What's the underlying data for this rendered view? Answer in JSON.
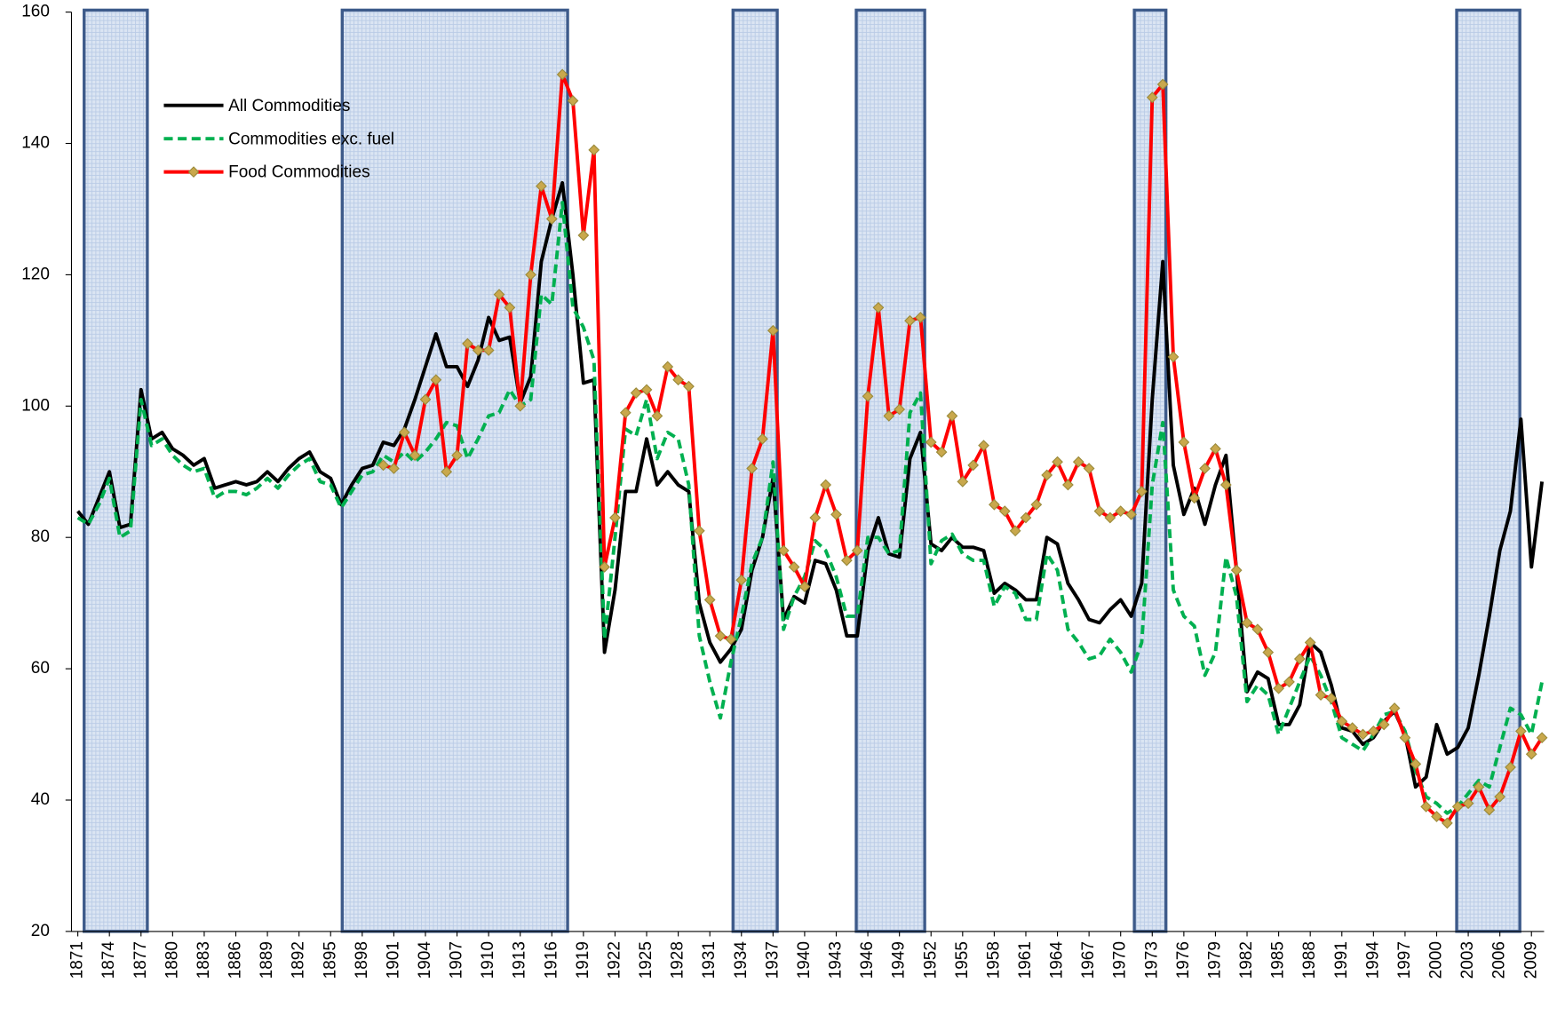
{
  "chart_data": {
    "type": "line",
    "x": [
      1871,
      1872,
      1873,
      1874,
      1875,
      1876,
      1877,
      1878,
      1879,
      1880,
      1881,
      1882,
      1883,
      1884,
      1885,
      1886,
      1887,
      1888,
      1889,
      1890,
      1891,
      1892,
      1893,
      1894,
      1895,
      1896,
      1897,
      1898,
      1899,
      1900,
      1901,
      1902,
      1903,
      1904,
      1905,
      1906,
      1907,
      1908,
      1909,
      1910,
      1911,
      1912,
      1913,
      1914,
      1915,
      1916,
      1917,
      1918,
      1919,
      1920,
      1921,
      1922,
      1923,
      1924,
      1925,
      1926,
      1927,
      1928,
      1929,
      1930,
      1931,
      1932,
      1933,
      1934,
      1935,
      1936,
      1937,
      1938,
      1939,
      1940,
      1941,
      1942,
      1943,
      1944,
      1945,
      1946,
      1947,
      1948,
      1949,
      1950,
      1951,
      1952,
      1953,
      1954,
      1955,
      1956,
      1957,
      1958,
      1959,
      1960,
      1961,
      1962,
      1963,
      1964,
      1965,
      1966,
      1967,
      1968,
      1969,
      1970,
      1971,
      1972,
      1973,
      1974,
      1975,
      1976,
      1977,
      1978,
      1979,
      1980,
      1981,
      1982,
      1983,
      1984,
      1985,
      1986,
      1987,
      1988,
      1989,
      1990,
      1991,
      1992,
      1993,
      1994,
      1995,
      1996,
      1997,
      1998,
      1999,
      2000,
      2001,
      2002,
      2003,
      2004,
      2005,
      2006,
      2007,
      2008,
      2009,
      2010
    ],
    "series": [
      {
        "name": "All Commodities",
        "color": "#000000",
        "dashed": false,
        "marker": null,
        "values": [
          84,
          82,
          86,
          90,
          81.5,
          82,
          102.5,
          95,
          96,
          93.5,
          92.5,
          91,
          92,
          87.5,
          88,
          88.5,
          88,
          88.5,
          90,
          88.5,
          90.5,
          92,
          93,
          90,
          89,
          85,
          88,
          90.5,
          91,
          94.5,
          94,
          96.5,
          101,
          106,
          111,
          106,
          106,
          103,
          107,
          113.5,
          110,
          110.5,
          100.5,
          104.5,
          122,
          128.5,
          134,
          120,
          103.5,
          104,
          62.5,
          72,
          87,
          87,
          95,
          88,
          90,
          88,
          87,
          70,
          64,
          61,
          63,
          66,
          75,
          80,
          89,
          67.5,
          71,
          70,
          76.5,
          76,
          72,
          65,
          65,
          78,
          83,
          77.5,
          77,
          92,
          96,
          79,
          78,
          80,
          78.5,
          78.5,
          78,
          71.5,
          73,
          72,
          70.5,
          70.5,
          80,
          79,
          73,
          70.5,
          67.5,
          67,
          69,
          70.5,
          68,
          73,
          101,
          122,
          91,
          83.5,
          87.5,
          82,
          88,
          92.5,
          75,
          56.5,
          59.5,
          58.5,
          51.5,
          51.5,
          54.5,
          64,
          62.5,
          57.5,
          51,
          50.5,
          48.5,
          49.5,
          52,
          53.5,
          50,
          42,
          43.5,
          51.5,
          47,
          48,
          51,
          59,
          68,
          78,
          84,
          98,
          75.5,
          88.5
        ]
      },
      {
        "name": "Commodities exc. fuel",
        "color": "#00b050",
        "dashed": true,
        "marker": null,
        "values": [
          83,
          82,
          85,
          89,
          80,
          81,
          101,
          94,
          95,
          92.5,
          91,
          90,
          90.5,
          86,
          87,
          87,
          86.5,
          87.5,
          89,
          87.5,
          89.5,
          91,
          92,
          88.5,
          88,
          84.5,
          87,
          89.5,
          90,
          92.5,
          91.5,
          93,
          91.5,
          93,
          95,
          97.5,
          97,
          92,
          95,
          98.5,
          99,
          102.5,
          100,
          101,
          117,
          115.5,
          131,
          115,
          112,
          107,
          64.5,
          80,
          96.5,
          95.5,
          101,
          92,
          96,
          95,
          88,
          65,
          58,
          52.5,
          61,
          68,
          76,
          80,
          91.5,
          66,
          71,
          74,
          79.5,
          78,
          74,
          68,
          68,
          80,
          80,
          77.5,
          78,
          99,
          102,
          76,
          79.5,
          80.5,
          77.5,
          76.5,
          76.5,
          69.5,
          72.5,
          71.5,
          67.5,
          67.5,
          77.5,
          75,
          66,
          64,
          61.5,
          62,
          64.5,
          62.5,
          59.5,
          64,
          88,
          97.5,
          72,
          68,
          66.5,
          59,
          62.5,
          77,
          71,
          55,
          57.5,
          56,
          50,
          54,
          58,
          62,
          59,
          55,
          49.5,
          48.5,
          47.5,
          50,
          53,
          53.5,
          50.5,
          44.5,
          40.5,
          39.5,
          38,
          39,
          41,
          43,
          42,
          48,
          54,
          53,
          50,
          58
        ]
      },
      {
        "name": "Food Commodities",
        "color": "#ff0000",
        "dashed": false,
        "marker": "diamond",
        "marker_color": "#c9a84c",
        "values": [
          null,
          null,
          null,
          null,
          null,
          null,
          null,
          null,
          null,
          null,
          null,
          null,
          null,
          null,
          null,
          null,
          null,
          null,
          null,
          null,
          null,
          null,
          null,
          null,
          null,
          null,
          null,
          null,
          null,
          91,
          90.5,
          96,
          92.5,
          101,
          104,
          90,
          92.5,
          109.5,
          108.5,
          108.5,
          117,
          115,
          100,
          120,
          133.5,
          128.5,
          150.5,
          146.5,
          126,
          139,
          75.5,
          83,
          99,
          102,
          102.5,
          98.5,
          106,
          104,
          103,
          81,
          70.5,
          65,
          64.5,
          73.5,
          90.5,
          95,
          111.5,
          78,
          75.5,
          72.5,
          83,
          88,
          83.5,
          76.5,
          78,
          101.5,
          115,
          98.5,
          99.5,
          113,
          113.5,
          94.5,
          93,
          98.5,
          88.5,
          91,
          94,
          85,
          84,
          81,
          83,
          85,
          89.5,
          91.5,
          88,
          91.5,
          90.5,
          84,
          83,
          84,
          83.5,
          87,
          147,
          149,
          107.5,
          94.5,
          86,
          90.5,
          93.5,
          88,
          75,
          67,
          66,
          62.5,
          57,
          58,
          61.5,
          64,
          56,
          55.5,
          52,
          51,
          50,
          50.5,
          51.5,
          54,
          49.5,
          45.5,
          39,
          37.5,
          36.5,
          39,
          39.5,
          42,
          38.5,
          40.5,
          45,
          50.5,
          47,
          49.5
        ]
      }
    ],
    "shaded_periods": [
      [
        1871.6,
        1877.6
      ],
      [
        1896.1,
        1917.5
      ],
      [
        1933.2,
        1937.4
      ],
      [
        1944.9,
        1951.4
      ],
      [
        1971.3,
        1974.3
      ],
      [
        2001.9,
        2007.9
      ]
    ],
    "shade_color": "#d6e2f2",
    "shade_border": "#3d5a8a",
    "xlim": [
      1870.4,
      2010.2
    ],
    "xticks": [
      1871,
      1874,
      1877,
      1880,
      1883,
      1886,
      1889,
      1892,
      1895,
      1898,
      1901,
      1904,
      1907,
      1910,
      1913,
      1916,
      1919,
      1922,
      1925,
      1928,
      1931,
      1934,
      1937,
      1940,
      1943,
      1946,
      1949,
      1952,
      1955,
      1958,
      1961,
      1964,
      1967,
      1970,
      1973,
      1976,
      1979,
      1982,
      1985,
      1988,
      1991,
      1994,
      1997,
      2000,
      2003,
      2006,
      2009
    ],
    "ylim": [
      20,
      160
    ],
    "yticks": [
      20,
      40,
      60,
      80,
      100,
      120,
      140,
      160
    ],
    "grid": false,
    "legend": "upper-left"
  }
}
